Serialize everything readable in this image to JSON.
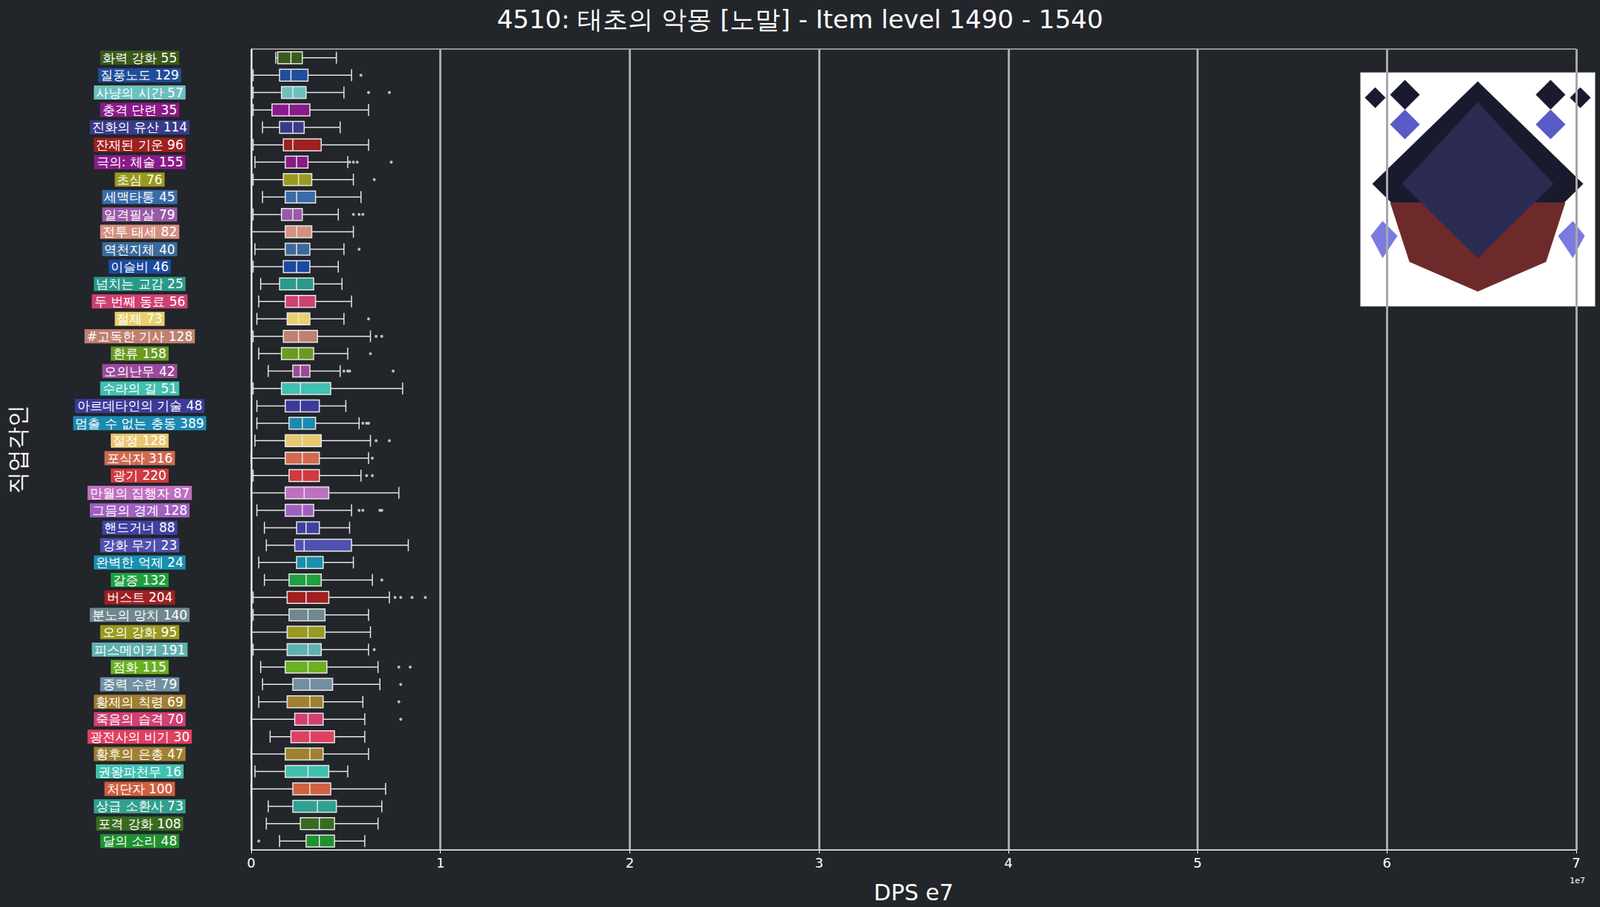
{
  "chart_data": {
    "type": "boxplot",
    "title": "4510: 태초의 악몽 [노말] - Item level 1490 - 1540",
    "x_label": "DPS e7",
    "y_label": "직업각인",
    "annotations": [
      "1e7"
    ],
    "orientation": "horizontal",
    "grid": true,
    "xlim": [
      0,
      7
    ],
    "xticks": [
      0,
      1,
      2,
      3,
      4,
      5,
      6,
      7
    ],
    "categories": [
      "화력 강화 55",
      "질풍노도 129",
      "사냥의 시간 57",
      "충격 단련 35",
      "진화의 유산 114",
      "잔재된 기운 96",
      "극의: 체술 155",
      "초심 76",
      "세맥타통 45",
      "일격필살 79",
      "전투 태세 82",
      "역천지체 40",
      "이슬비 46",
      "넘치는 교감 25",
      "두 번째 동료 56",
      "절제 73",
      "#고독한 기사 128",
      "환류 158",
      "오의난무 42",
      "수라의 길 51",
      "아르데타인의 기술 48",
      "멈출 수 없는 충동 389",
      "절정 128",
      "포식자 316",
      "광기 220",
      "만월의 집행자 87",
      "그믐의 경계 128",
      "핸드거너 88",
      "강화 무기 23",
      "완벽한 억제 24",
      "갈증 132",
      "버스트 204",
      "분노의 망치 140",
      "오의 강화 95",
      "피스메이커 191",
      "점화 115",
      "중력 수련 79",
      "황제의 칙령 69",
      "죽음의 습격 70",
      "광전사의 비기 30",
      "황후의 은총 47",
      "권왕파천무 16",
      "처단자 100",
      "상급 소환사 73",
      "포격 강화 108",
      "달의 소리 48"
    ],
    "colors": [
      "#3a5a1a",
      "#1f4e9a",
      "#6cc0c0",
      "#8b1a8b",
      "#3a3a8a",
      "#a02020",
      "#8a1a8a",
      "#9a9a20",
      "#3a6aa8",
      "#9a5aa8",
      "#d49080",
      "#3a6a9a",
      "#1a4aa0",
      "#2a9a8a",
      "#d04070",
      "#e8d070",
      "#c08070",
      "#6a9a20",
      "#9a4a9a",
      "#40c0b0",
      "#3a3a9a",
      "#1a8ab0",
      "#e8c870",
      "#d06a50",
      "#d03a40",
      "#c070c0",
      "#a060c0",
      "#4040a0",
      "#5050b0",
      "#1890b0",
      "#20a040",
      "#a02020",
      "#708890",
      "#9a9a20",
      "#60b0b0",
      "#6ab020",
      "#7090a0",
      "#a08030",
      "#d04070",
      "#e04060",
      "#a08030",
      "#40c0b0",
      "#d06040",
      "#30a090",
      "#3a6a20",
      "#209030"
    ],
    "values": [
      [
        0.13,
        0.14,
        0.21,
        0.27,
        0.45
      ],
      [
        0.01,
        0.15,
        0.21,
        0.3,
        0.53
      ],
      [
        0.01,
        0.16,
        0.22,
        0.29,
        0.49
      ],
      [
        0.01,
        0.11,
        0.2,
        0.31,
        0.62
      ],
      [
        0.06,
        0.15,
        0.22,
        0.28,
        0.47
      ],
      [
        0.01,
        0.17,
        0.22,
        0.37,
        0.62
      ],
      [
        0.02,
        0.18,
        0.24,
        0.3,
        0.51
      ],
      [
        0.01,
        0.17,
        0.25,
        0.32,
        0.54
      ],
      [
        0.06,
        0.18,
        0.24,
        0.34,
        0.58
      ],
      [
        0.01,
        0.16,
        0.22,
        0.27,
        0.46
      ],
      [
        0.0,
        0.18,
        0.24,
        0.32,
        0.54
      ],
      [
        0.02,
        0.18,
        0.24,
        0.31,
        0.49
      ],
      [
        0.01,
        0.17,
        0.24,
        0.31,
        0.46
      ],
      [
        0.05,
        0.15,
        0.24,
        0.33,
        0.48
      ],
      [
        0.04,
        0.18,
        0.25,
        0.34,
        0.53
      ],
      [
        0.03,
        0.19,
        0.25,
        0.31,
        0.49
      ],
      [
        0.01,
        0.17,
        0.25,
        0.35,
        0.63
      ],
      [
        0.04,
        0.16,
        0.25,
        0.33,
        0.51
      ],
      [
        0.09,
        0.22,
        0.26,
        0.31,
        0.47
      ],
      [
        0.01,
        0.16,
        0.26,
        0.42,
        0.8
      ],
      [
        0.03,
        0.18,
        0.26,
        0.36,
        0.5
      ],
      [
        0.03,
        0.2,
        0.27,
        0.34,
        0.57
      ],
      [
        0.02,
        0.18,
        0.27,
        0.37,
        0.63
      ],
      [
        0.0,
        0.18,
        0.27,
        0.36,
        0.62
      ],
      [
        0.01,
        0.2,
        0.27,
        0.36,
        0.58
      ],
      [
        0.0,
        0.18,
        0.28,
        0.41,
        0.78
      ],
      [
        0.03,
        0.18,
        0.27,
        0.33,
        0.53
      ],
      [
        0.07,
        0.24,
        0.29,
        0.36,
        0.52
      ],
      [
        0.08,
        0.23,
        0.28,
        0.53,
        0.83
      ],
      [
        0.04,
        0.24,
        0.29,
        0.38,
        0.54
      ],
      [
        0.07,
        0.2,
        0.29,
        0.37,
        0.64
      ],
      [
        0.01,
        0.19,
        0.29,
        0.41,
        0.73
      ],
      [
        0.01,
        0.2,
        0.3,
        0.39,
        0.62
      ],
      [
        0.0,
        0.19,
        0.3,
        0.39,
        0.63
      ],
      [
        0.01,
        0.19,
        0.3,
        0.37,
        0.62
      ],
      [
        0.05,
        0.18,
        0.3,
        0.4,
        0.67
      ],
      [
        0.06,
        0.22,
        0.31,
        0.43,
        0.68
      ],
      [
        0.04,
        0.19,
        0.31,
        0.38,
        0.59
      ],
      [
        0.0,
        0.23,
        0.3,
        0.38,
        0.6
      ],
      [
        0.1,
        0.21,
        0.31,
        0.44,
        0.6
      ],
      [
        0.0,
        0.18,
        0.31,
        0.38,
        0.62
      ],
      [
        0.02,
        0.18,
        0.3,
        0.41,
        0.51
      ],
      [
        0.0,
        0.22,
        0.31,
        0.42,
        0.71
      ],
      [
        0.09,
        0.22,
        0.35,
        0.45,
        0.69
      ],
      [
        0.08,
        0.26,
        0.36,
        0.44,
        0.67
      ],
      [
        0.15,
        0.29,
        0.36,
        0.44,
        0.6
      ]
    ],
    "outliers": [
      [],
      [
        0.58
      ],
      [
        0.62,
        0.73
      ],
      [],
      [],
      [],
      [
        0.52,
        0.54,
        0.56,
        0.74
      ],
      [
        0.65
      ],
      [],
      [
        0.54,
        0.57,
        0.59
      ],
      [],
      [
        0.57
      ],
      [],
      [],
      [],
      [
        0.62
      ],
      [
        0.66,
        0.69
      ],
      [
        0.63
      ],
      [
        0.49,
        0.51,
        0.52,
        0.75
      ],
      [],
      [],
      [
        0.59,
        0.61,
        0.62
      ],
      [
        0.66,
        0.73
      ],
      [
        0.64
      ],
      [
        0.61,
        0.64
      ],
      [],
      [
        0.57,
        0.59,
        0.68,
        0.69
      ],
      [],
      [],
      [],
      [
        0.69
      ],
      [
        0.76,
        0.79,
        0.85,
        0.92
      ],
      [],
      [],
      [
        0.65
      ],
      [
        0.78,
        0.84
      ],
      [
        0.79
      ],
      [
        0.78
      ],
      [
        0.79
      ],
      [],
      [],
      [],
      [],
      [],
      [],
      [
        0.04
      ]
    ]
  }
}
